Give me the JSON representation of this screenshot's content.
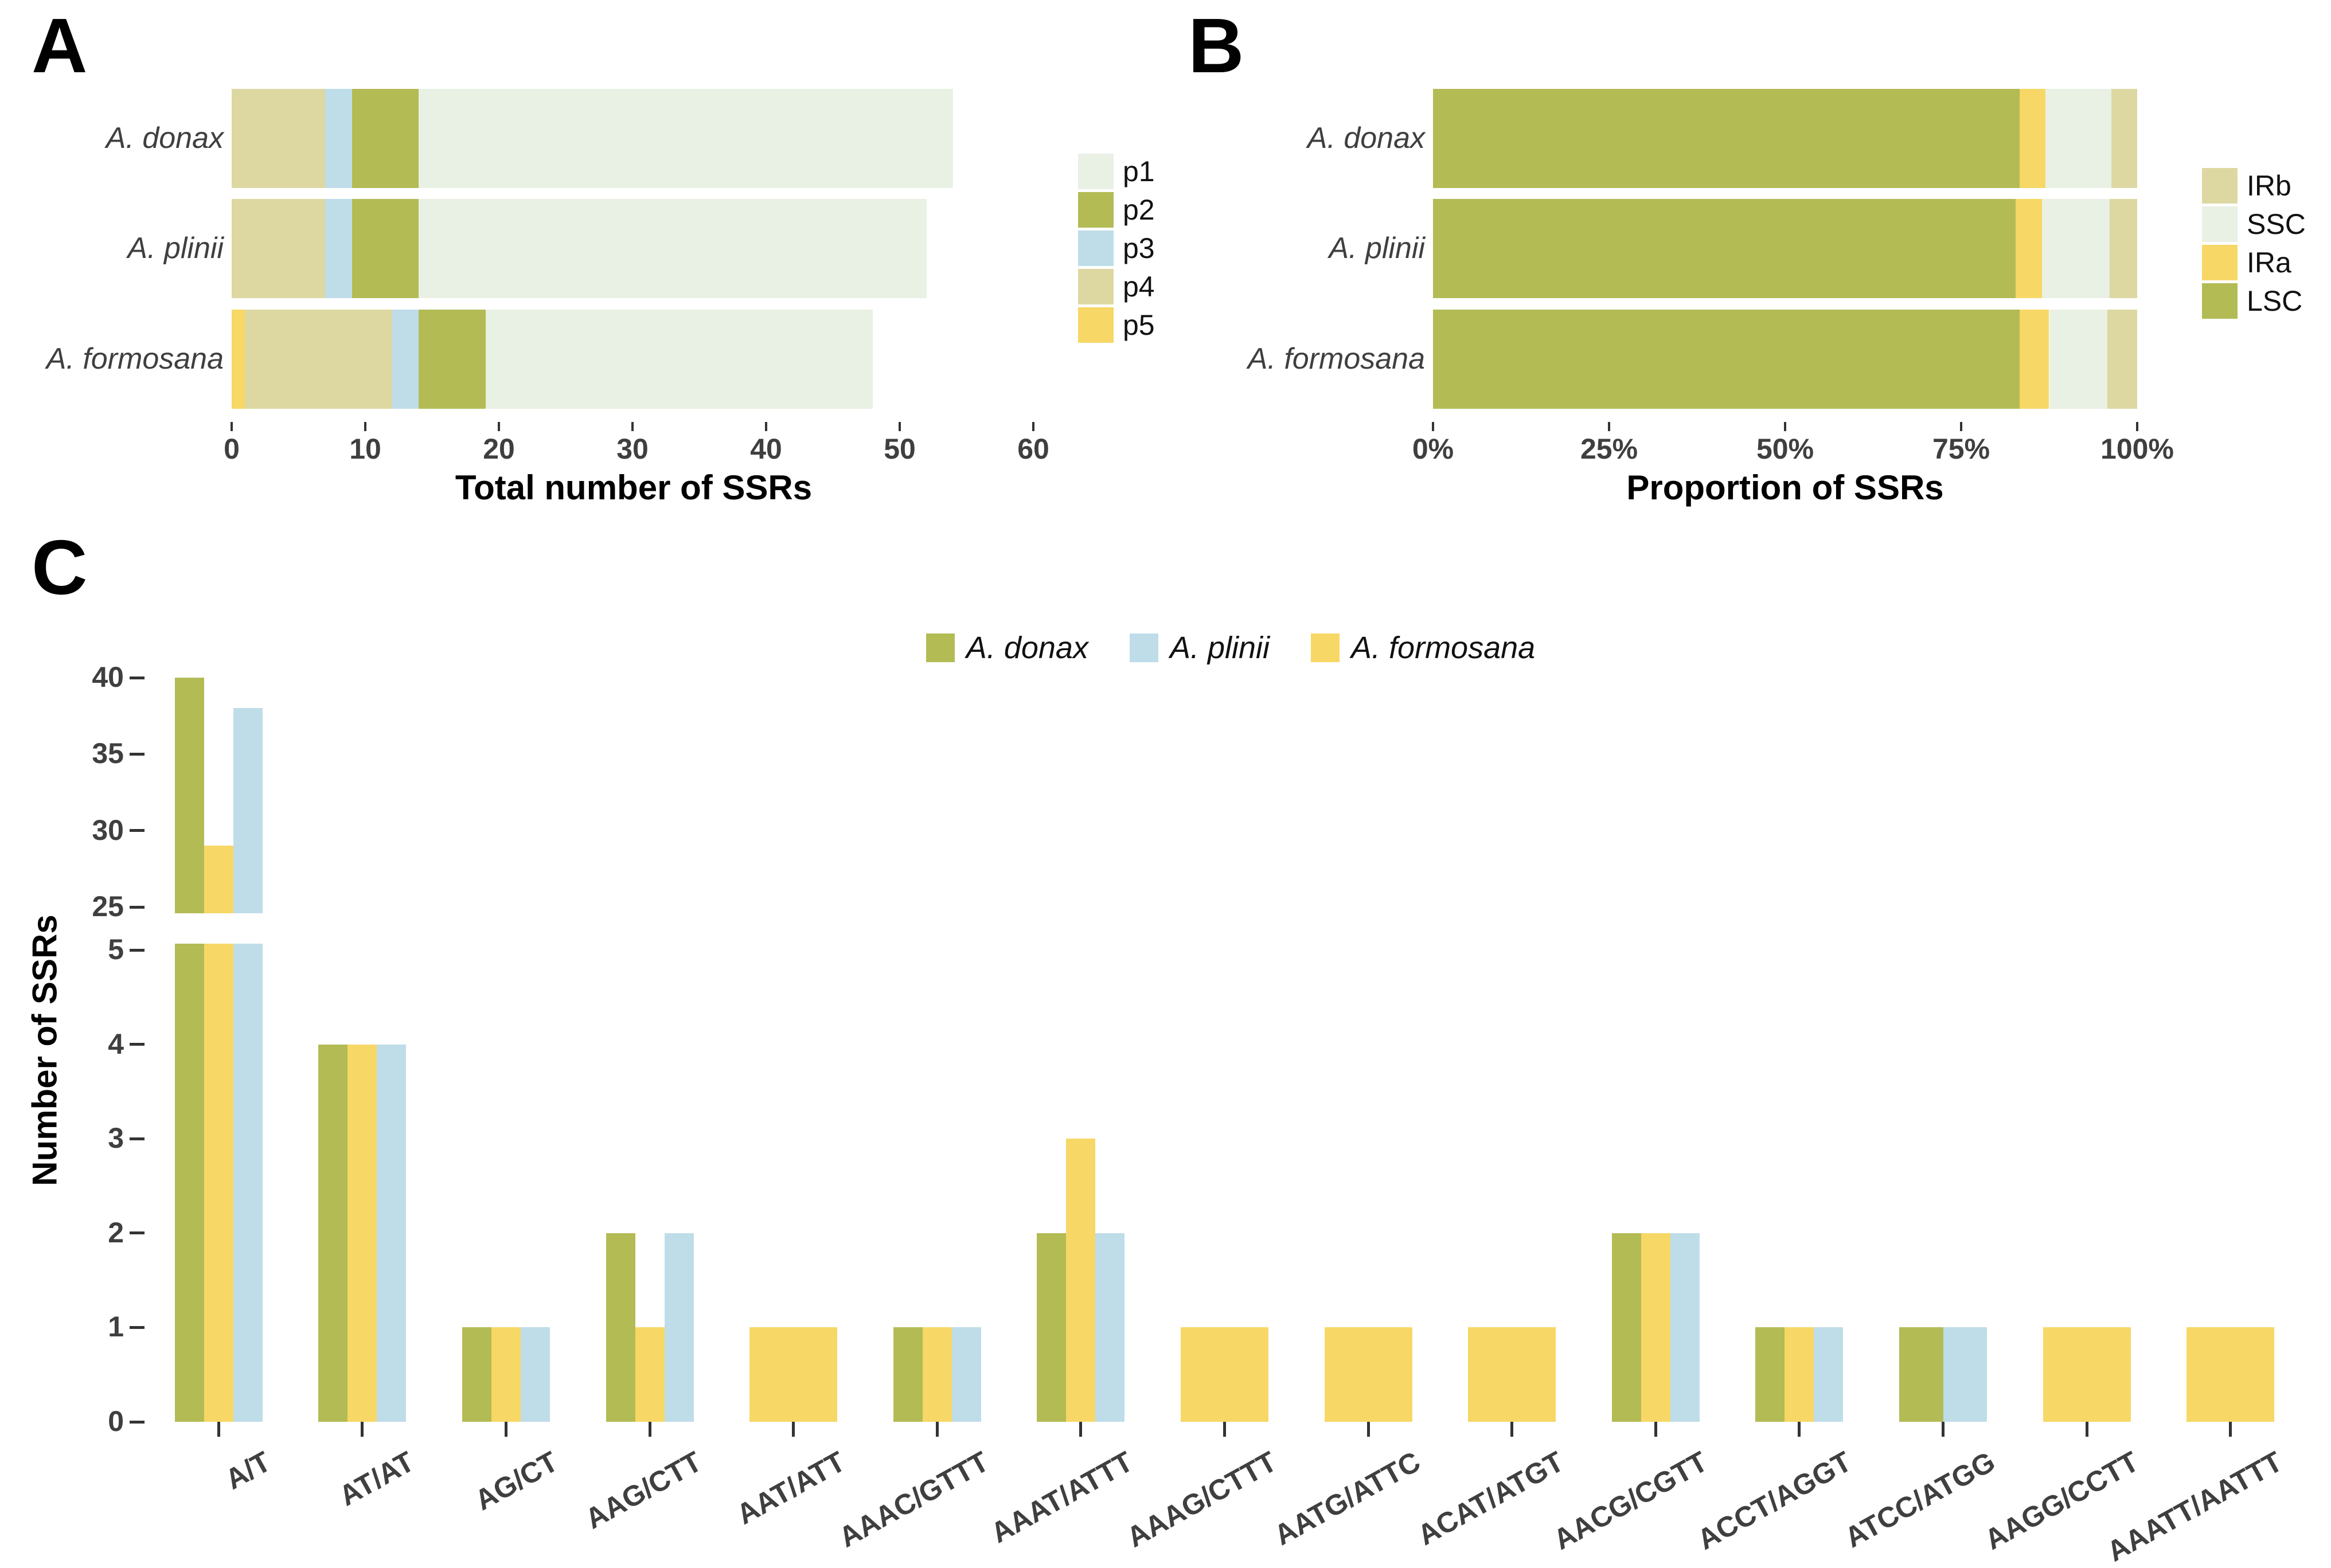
{
  "palette": {
    "olive": "#b3bb55",
    "yellow": "#f7d765",
    "blue": "#bedde9",
    "pale_green": "#e9f0e4",
    "beige": "#ddd8a2",
    "tick_text": "#3f3f3f",
    "tick_mark": "#333333",
    "title_text": "#000000"
  },
  "chart_data": [
    {
      "id": "A",
      "panel_letter": "A",
      "type": "bar",
      "orientation": "horizontal-stacked",
      "xlabel": "Total number of SSRs",
      "x_ticks": [
        0,
        10,
        20,
        30,
        40,
        50,
        60
      ],
      "xlim": [
        0,
        63
      ],
      "categories": [
        "A. donax",
        "A. plinii",
        "A. formosana"
      ],
      "legend": [
        {
          "label": "p1",
          "color_key": "pale_green"
        },
        {
          "label": "p2",
          "color_key": "olive"
        },
        {
          "label": "p3",
          "color_key": "blue"
        },
        {
          "label": "p4",
          "color_key": "beige"
        },
        {
          "label": "p5",
          "color_key": "yellow"
        }
      ],
      "stack_draw_order": [
        "p5",
        "p4",
        "p3",
        "p2",
        "p1"
      ],
      "series": [
        {
          "name": "p1",
          "color_key": "pale_green",
          "values": [
            40,
            38,
            29
          ]
        },
        {
          "name": "p2",
          "color_key": "olive",
          "values": [
            5,
            5,
            5
          ]
        },
        {
          "name": "p3",
          "color_key": "blue",
          "values": [
            2,
            2,
            2
          ]
        },
        {
          "name": "p4",
          "color_key": "beige",
          "values": [
            7,
            7,
            11
          ]
        },
        {
          "name": "p5",
          "color_key": "yellow",
          "values": [
            0,
            0,
            1
          ]
        }
      ],
      "totals": [
        54,
        52,
        48
      ]
    },
    {
      "id": "B",
      "panel_letter": "B",
      "type": "bar",
      "orientation": "horizontal-stacked-percent",
      "xlabel": "Proportion of SSRs",
      "x_tick_labels": [
        "0%",
        "25%",
        "50%",
        "75%",
        "100%"
      ],
      "x_tick_values": [
        0,
        25,
        50,
        75,
        100
      ],
      "categories": [
        "A. donax",
        "A. plinii",
        "A. formosana"
      ],
      "legend": [
        {
          "label": "IRb",
          "color_key": "beige"
        },
        {
          "label": "SSC",
          "color_key": "pale_green"
        },
        {
          "label": "IRa",
          "color_key": "yellow"
        },
        {
          "label": "LSC",
          "color_key": "olive"
        }
      ],
      "stack_draw_order": [
        "LSC",
        "IRa",
        "SSC",
        "IRb"
      ],
      "series": [
        {
          "name": "LSC",
          "color_key": "olive",
          "percent": [
            83.3,
            82.7,
            83.3
          ]
        },
        {
          "name": "IRa",
          "color_key": "yellow",
          "percent": [
            3.7,
            3.8,
            4.2
          ]
        },
        {
          "name": "SSC",
          "color_key": "pale_green",
          "percent": [
            9.3,
            9.6,
            8.3
          ]
        },
        {
          "name": "IRb",
          "color_key": "beige",
          "percent": [
            3.7,
            3.9,
            4.2
          ]
        }
      ]
    },
    {
      "id": "C",
      "panel_letter": "C",
      "type": "bar",
      "orientation": "vertical-grouped",
      "ylabel": "Number of SSRs",
      "broken_axis": {
        "upper_ticks": [
          25,
          30,
          35,
          40
        ],
        "lower_ticks": [
          0,
          1,
          2,
          3,
          4,
          5
        ],
        "upper_range": [
          25,
          40
        ],
        "lower_range": [
          0,
          5
        ]
      },
      "categories": [
        "A/T",
        "AT/AT",
        "AG/CT",
        "AAG/CTT",
        "AAT/ATT",
        "AAAC/GTTT",
        "AAAT/ATTT",
        "AAAG/CTTT",
        "AATG/ATTC",
        "ACAT/ATGT",
        "AACG/CGTT",
        "ACCT/AGGT",
        "ATCC/ATGG",
        "AAGG/CCTT",
        "AAATT/AATTT"
      ],
      "legend": [
        {
          "label": "A. donax",
          "color_key": "olive"
        },
        {
          "label": "A. plinii",
          "color_key": "blue"
        },
        {
          "label": "A. formosana",
          "color_key": "yellow"
        }
      ],
      "dodge_order": [
        "A. donax",
        "A. formosana",
        "A. plinii"
      ],
      "series": [
        {
          "name": "A. donax",
          "color_key": "olive",
          "values": [
            40,
            4,
            1,
            2,
            null,
            1,
            2,
            null,
            null,
            null,
            2,
            1,
            1,
            null,
            null
          ]
        },
        {
          "name": "A. formosana",
          "color_key": "yellow",
          "values": [
            29,
            4,
            1,
            1,
            1,
            1,
            3,
            1,
            1,
            1,
            2,
            1,
            null,
            1,
            1
          ]
        },
        {
          "name": "A. plinii",
          "color_key": "blue",
          "values": [
            38,
            4,
            1,
            2,
            null,
            1,
            2,
            null,
            null,
            null,
            2,
            1,
            1,
            null,
            null
          ]
        }
      ]
    }
  ]
}
